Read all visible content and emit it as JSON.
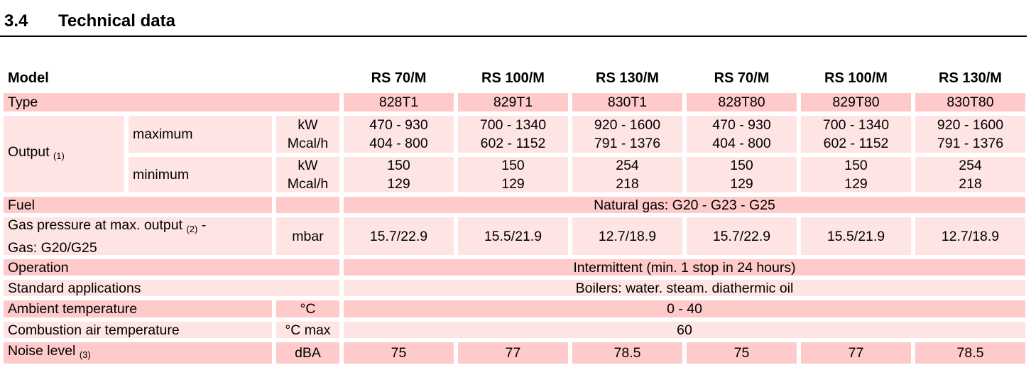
{
  "section": {
    "number": "3.4",
    "title": "Technical data"
  },
  "table": {
    "model_label": "Model",
    "models": [
      "RS 70/M",
      "RS 100/M",
      "RS 130/M",
      "RS 70/M",
      "RS 100/M",
      "RS 130/M"
    ],
    "type": {
      "label": "Type",
      "values": [
        "828T1",
        "829T1",
        "830T1",
        "828T80",
        "829T80",
        "830T80"
      ]
    },
    "output": {
      "label": "Output",
      "note": "(1)",
      "maximum": {
        "label": "maximum",
        "unit_kw": "kW",
        "unit_mcal": "Mcal/h",
        "kw": [
          "470 - 930",
          "700 - 1340",
          "920 - 1600",
          "470 - 930",
          "700 - 1340",
          "920 - 1600"
        ],
        "mcal": [
          "404 - 800",
          "602 - 1152",
          "791 - 1376",
          "404 - 800",
          "602 - 1152",
          "791 - 1376"
        ]
      },
      "minimum": {
        "label": "minimum",
        "unit_kw": "kW",
        "unit_mcal": "Mcal/h",
        "kw": [
          "150",
          "150",
          "254",
          "150",
          "150",
          "254"
        ],
        "mcal": [
          "129",
          "129",
          "218",
          "129",
          "129",
          "218"
        ]
      }
    },
    "fuel": {
      "label": "Fuel",
      "value": "Natural gas: G20 - G23 - G25"
    },
    "gas_pressure": {
      "label": "Gas pressure at max. output",
      "note": "(2)",
      "label_suffix": "-",
      "label_line2": "Gas: G20/G25",
      "unit": "mbar",
      "values": [
        "15.7/22.9",
        "15.5/21.9",
        "12.7/18.9",
        "15.7/22.9",
        "15.5/21.9",
        "12.7/18.9"
      ]
    },
    "operation": {
      "label": "Operation",
      "value": "Intermittent (min. 1 stop in 24 hours)"
    },
    "applications": {
      "label": "Standard applications",
      "value": "Boilers: water. steam. diathermic oil"
    },
    "ambient": {
      "label": "Ambient temperature",
      "unit": "°C",
      "value": "0 - 40"
    },
    "combustion_air": {
      "label": "Combustion air temperature",
      "unit": "°C max",
      "value": "60"
    },
    "noise": {
      "label": "Noise level",
      "note": "(3)",
      "unit": "dBA",
      "values": [
        "75",
        "77",
        "78.5",
        "75",
        "77",
        "78.5"
      ]
    }
  },
  "colors": {
    "row_dark": "#ffcaca",
    "row_light": "#ffe4e4"
  }
}
